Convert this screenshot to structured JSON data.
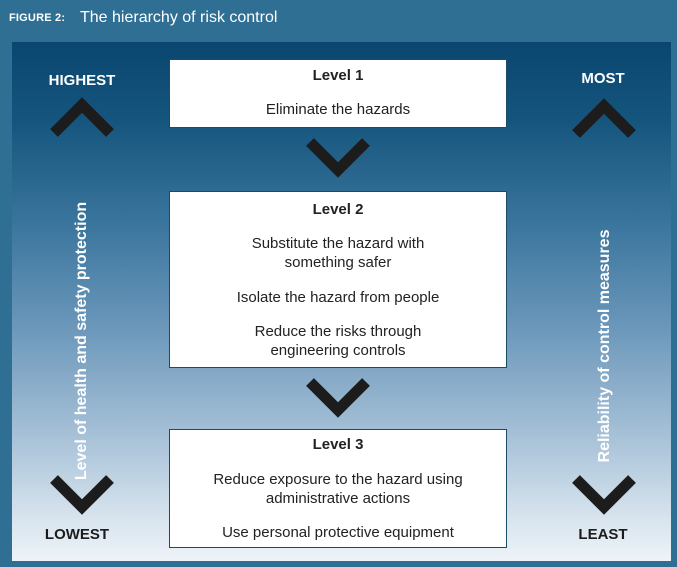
{
  "figure": {
    "label": "FIGURE 2:",
    "title": "The hierarchy of risk control"
  },
  "left_scale": {
    "top": "HIGHEST",
    "bottom": "LOWEST",
    "axis_label": "Level of health and safety protection"
  },
  "right_scale": {
    "top": "MOST",
    "bottom": "LEAST",
    "axis_label": "Reliability of control measures"
  },
  "levels": [
    {
      "title": "Level 1",
      "items": [
        "Eliminate the hazards"
      ]
    },
    {
      "title": "Level 2",
      "items": [
        "Substitute the hazard with",
        "something safer",
        "Isolate the hazard from people",
        "Reduce the risks through",
        "engineering controls"
      ]
    },
    {
      "title": "Level 3",
      "items": [
        "Reduce exposure to the hazard using",
        "administrative actions",
        "Use personal protective equipment"
      ]
    }
  ],
  "colors": {
    "chevron": "#1c1c1c",
    "panel_top": "#0a4670",
    "panel_bottom": "#eef3f8",
    "header_bg": "#2e6f93"
  }
}
